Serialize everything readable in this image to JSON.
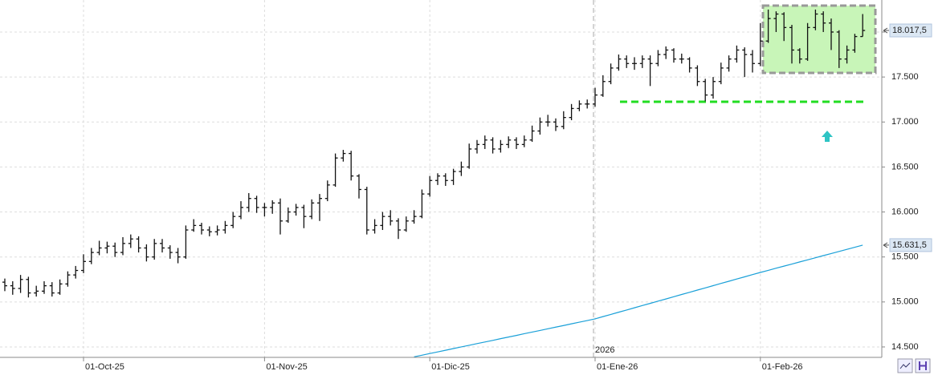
{
  "chart_data": {
    "type": "ohlc",
    "categories": [
      null,
      null,
      null,
      null,
      null,
      null,
      null,
      null,
      null,
      null,
      "01-Oct-25",
      null,
      null,
      null,
      null,
      null,
      null,
      null,
      null,
      null,
      null,
      null,
      null,
      null,
      null,
      null,
      null,
      null,
      null,
      null,
      null,
      null,
      null,
      "01-Nov-25",
      null,
      null,
      null,
      null,
      null,
      null,
      null,
      null,
      null,
      null,
      null,
      null,
      null,
      null,
      null,
      null,
      null,
      null,
      null,
      null,
      "01-Dic-25",
      null,
      null,
      null,
      null,
      null,
      null,
      null,
      null,
      null,
      null,
      null,
      null,
      null,
      null,
      null,
      null,
      null,
      null,
      null,
      null,
      "01-Ene-26",
      null,
      null,
      null,
      null,
      null,
      null,
      null,
      null,
      null,
      null,
      null,
      null,
      null,
      null,
      null,
      null,
      null,
      null,
      null,
      null,
      "01-Feb-26",
      null,
      null,
      null,
      null,
      null,
      null,
      null,
      null,
      null,
      null,
      null,
      null,
      null
    ],
    "open": [
      15220,
      15180,
      15150,
      15250,
      15100,
      15120,
      15180,
      15100,
      15200,
      15300,
      15350,
      15450,
      15550,
      15600,
      15620,
      15550,
      15650,
      15700,
      15600,
      15500,
      15650,
      15600,
      15550,
      15500,
      15800,
      15850,
      15800,
      15780,
      15800,
      15850,
      15950,
      16050,
      16150,
      16050,
      16050,
      16100,
      15900,
      16000,
      16050,
      15950,
      16100,
      16150,
      16300,
      16600,
      16650,
      16400,
      16250,
      15800,
      15850,
      15950,
      15900,
      15800,
      15900,
      15950,
      16200,
      16350,
      16400,
      16350,
      16450,
      16500,
      16700,
      16750,
      16800,
      16700,
      16750,
      16800,
      16750,
      16800,
      16900,
      17000,
      17000,
      16950,
      17050,
      17150,
      17200,
      17200,
      17300,
      17450,
      17600,
      17700,
      17650,
      17650,
      17700,
      17650,
      17750,
      17800,
      17700,
      17700,
      17600,
      17450,
      17300,
      17450,
      17600,
      17700,
      17800,
      17750,
      17650,
      17900,
      18150,
      18200,
      18050,
      17800,
      17700,
      18050,
      18200,
      18100,
      18000,
      17700,
      17800,
      17950
    ],
    "high": [
      15260,
      15230,
      15300,
      15280,
      15180,
      15230,
      15220,
      15250,
      15340,
      15400,
      15530,
      15600,
      15680,
      15670,
      15660,
      15720,
      15750,
      15730,
      15640,
      15700,
      15700,
      15630,
      15600,
      15850,
      15920,
      15880,
      15840,
      15850,
      15900,
      16000,
      16120,
      16210,
      16180,
      16100,
      16130,
      16150,
      16050,
      16090,
      16080,
      16140,
      16200,
      16350,
      16650,
      16690,
      16680,
      16420,
      16280,
      15920,
      16000,
      16020,
      15930,
      15950,
      16020,
      16250,
      16400,
      16430,
      16430,
      16480,
      16560,
      16760,
      16800,
      16850,
      16830,
      16800,
      16840,
      16830,
      16850,
      16960,
      17050,
      17080,
      17040,
      17120,
      17200,
      17240,
      17250,
      17380,
      17520,
      17650,
      17750,
      17740,
      17720,
      17740,
      17740,
      17800,
      17840,
      17820,
      17760,
      17720,
      17630,
      17480,
      17500,
      17660,
      17740,
      17850,
      17830,
      17800,
      18100,
      18250,
      18230,
      18220,
      18080,
      17820,
      18100,
      18250,
      18230,
      18150,
      18020,
      17850,
      17980,
      18200
    ],
    "low": [
      15120,
      15080,
      15100,
      15050,
      15060,
      15090,
      15060,
      15080,
      15170,
      15260,
      15320,
      15420,
      15520,
      15540,
      15500,
      15520,
      15600,
      15550,
      15450,
      15470,
      15550,
      15480,
      15430,
      15480,
      15780,
      15750,
      15730,
      15740,
      15760,
      15820,
      15920,
      16000,
      15990,
      15950,
      15980,
      15750,
      15880,
      15960,
      15820,
      15920,
      15900,
      16120,
      16280,
      16560,
      16350,
      16150,
      15750,
      15760,
      15800,
      15850,
      15700,
      15780,
      15870,
      15930,
      16170,
      16300,
      16290,
      16300,
      16400,
      16480,
      16650,
      16700,
      16650,
      16660,
      16710,
      16700,
      16720,
      16780,
      16860,
      16950,
      16900,
      16920,
      17020,
      17120,
      17150,
      17170,
      17280,
      17420,
      17570,
      17600,
      17580,
      17600,
      17400,
      17620,
      17700,
      17660,
      17650,
      17550,
      17400,
      17230,
      17260,
      17420,
      17560,
      17660,
      17500,
      17550,
      17620,
      17880,
      18000,
      17900,
      17650,
      17650,
      17680,
      18020,
      18000,
      17800,
      17600,
      17650,
      17770,
      17950
    ],
    "close": [
      15180,
      15150,
      15250,
      15100,
      15120,
      15180,
      15100,
      15200,
      15300,
      15350,
      15450,
      15550,
      15600,
      15620,
      15550,
      15650,
      15700,
      15600,
      15500,
      15650,
      15600,
      15550,
      15500,
      15800,
      15850,
      15800,
      15780,
      15800,
      15850,
      15950,
      16050,
      16150,
      16050,
      16050,
      16100,
      15900,
      16000,
      16050,
      15950,
      16100,
      16150,
      16300,
      16600,
      16650,
      16400,
      16250,
      15800,
      15850,
      15950,
      15900,
      15800,
      15900,
      15950,
      16200,
      16350,
      16400,
      16350,
      16450,
      16500,
      16700,
      16750,
      16800,
      16700,
      16750,
      16800,
      16750,
      16800,
      16900,
      17000,
      17000,
      16950,
      17050,
      17150,
      17200,
      17200,
      17300,
      17450,
      17600,
      17700,
      17650,
      17650,
      17700,
      17650,
      17750,
      17800,
      17700,
      17700,
      17600,
      17450,
      17300,
      17450,
      17600,
      17700,
      17800,
      17750,
      17650,
      17900,
      18150,
      18200,
      18050,
      17800,
      17700,
      18050,
      18200,
      18100,
      18000,
      17700,
      17800,
      17950,
      18017.5
    ],
    "close_value_label": "18.017,5",
    "color": "#111111",
    "ma": {
      "color": "#1aa0d8",
      "value_label": "15.631,5",
      "values": [
        null,
        null,
        null,
        null,
        null,
        null,
        null,
        null,
        null,
        null,
        null,
        null,
        null,
        null,
        null,
        null,
        null,
        null,
        null,
        null,
        null,
        null,
        null,
        null,
        null,
        null,
        null,
        null,
        null,
        null,
        null,
        null,
        null,
        null,
        null,
        null,
        null,
        null,
        null,
        null,
        null,
        null,
        null,
        null,
        null,
        null,
        null,
        null,
        null,
        null,
        null,
        null,
        14390,
        14408,
        14427,
        14445,
        14463,
        14482,
        14500,
        14518,
        14537,
        14555,
        14573,
        14592,
        14610,
        14628,
        14647,
        14665,
        14683,
        14702,
        14720,
        14738,
        14757,
        14775,
        14793,
        14812,
        14837,
        14861,
        14886,
        14910,
        14935,
        14960,
        14984,
        15009,
        15033,
        15058,
        15083,
        15107,
        15132,
        15156,
        15181,
        15206,
        15230,
        15255,
        15279,
        15304,
        15328,
        15351,
        15375,
        15398,
        15421,
        15445,
        15468,
        15491,
        15515,
        15538,
        15561,
        15585,
        15608,
        15631.5
      ]
    },
    "ylim": [
      14384,
      18356
    ],
    "yticks": [
      {
        "value": 14500,
        "label": "14.500"
      },
      {
        "value": 15000,
        "label": "15.000"
      },
      {
        "value": 15500,
        "label": "15.500"
      },
      {
        "value": 16000,
        "label": "16.000"
      },
      {
        "value": 16500,
        "label": "16.500"
      },
      {
        "value": 17000,
        "label": "17.000"
      },
      {
        "value": 17500,
        "label": "17.500"
      },
      {
        "value": 18000,
        "label": "18.000"
      }
    ],
    "grid": true,
    "annotations": {
      "year_label": "2026",
      "support": 17225,
      "support_color": "#22dd22",
      "range_box": [
        17546,
        18294
      ],
      "range_box_color": "#c8f5b8"
    }
  }
}
